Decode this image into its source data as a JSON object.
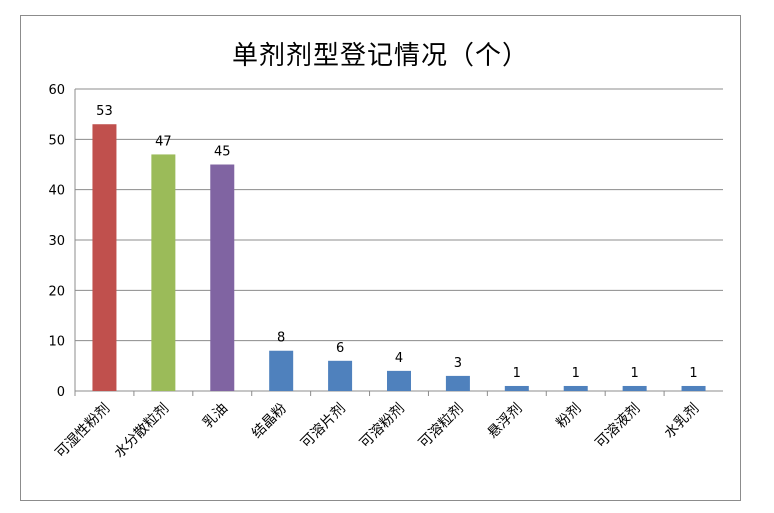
{
  "chart_data": {
    "type": "bar",
    "title": "单剂剂型登记情况（个）",
    "categories": [
      "可湿性粉剂",
      "水分散粒剂",
      "乳油",
      "结晶粉",
      "可溶片剂",
      "可溶粉剂",
      "可溶粒剂",
      "悬浮剂",
      "粉剂",
      "可溶液剂",
      "水乳剂"
    ],
    "values": [
      53,
      47,
      45,
      8,
      6,
      4,
      3,
      1,
      1,
      1,
      1
    ],
    "bar_colors": [
      "#c0504d",
      "#9bbb59",
      "#8064a2",
      "#4f81bd",
      "#4f81bd",
      "#4f81bd",
      "#4f81bd",
      "#4f81bd",
      "#4f81bd",
      "#4f81bd",
      "#4f81bd"
    ],
    "ylim": [
      0,
      60
    ],
    "yticks": [
      0,
      10,
      20,
      30,
      40,
      50,
      60
    ],
    "xlabel": "",
    "ylabel": "",
    "grid": true,
    "legend": "none",
    "data_labels": true
  }
}
